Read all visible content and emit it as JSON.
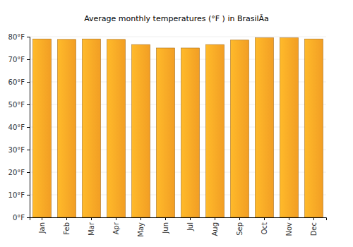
{
  "chart_data": {
    "type": "bar",
    "title": "Average monthly temperatures (°F ) in BrasilÃa",
    "categories": [
      "Jan",
      "Feb",
      "Mar",
      "Apr",
      "May",
      "Jun",
      "Jul",
      "Aug",
      "Sep",
      "Oct",
      "Nov",
      "Dec"
    ],
    "values": [
      79,
      78.8,
      79,
      78.8,
      76.5,
      75,
      75,
      76.5,
      78.5,
      79.5,
      79.5,
      79
    ],
    "color": "#ffa726",
    "ylim": [
      0,
      80
    ],
    "yticks": [
      {
        "value": 0,
        "label": "0°F"
      },
      {
        "value": 10,
        "label": "10°F"
      },
      {
        "value": 20,
        "label": "20°F"
      },
      {
        "value": 30,
        "label": "30°F"
      },
      {
        "value": 40,
        "label": "40°F"
      },
      {
        "value": 50,
        "label": "50°F"
      },
      {
        "value": 60,
        "label": "60°F"
      },
      {
        "value": 70,
        "label": "70°F"
      },
      {
        "value": 80,
        "label": "80°F"
      }
    ],
    "grid": true
  }
}
